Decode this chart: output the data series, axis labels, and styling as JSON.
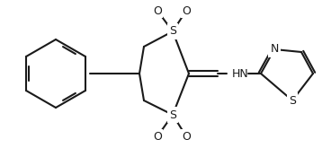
{
  "bg_color": "#ffffff",
  "line_color": "#1a1a1a",
  "line_width": 1.5,
  "fig_width": 3.68,
  "fig_height": 1.65,
  "dpi": 100,
  "xlim": [
    0,
    368
  ],
  "ylim": [
    0,
    165
  ]
}
